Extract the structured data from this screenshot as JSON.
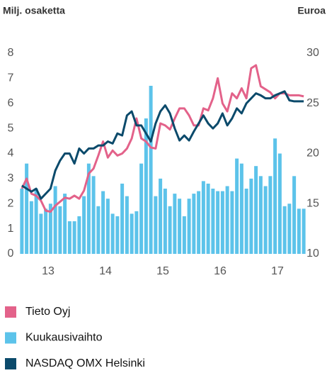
{
  "chart_data": {
    "type": "combo",
    "y_label": "Milj. osaketta",
    "y2_label": "Euroa",
    "x_groups": [
      "13",
      "14",
      "15",
      "16",
      "17"
    ],
    "categories": [
      null,
      null,
      null,
      null,
      null,
      null,
      null,
      null,
      null,
      null,
      null,
      null,
      null,
      null,
      null,
      null,
      null,
      null,
      null,
      null,
      null,
      null,
      null,
      null,
      null,
      null,
      null,
      null,
      null,
      null,
      null,
      null,
      null,
      null,
      null,
      null,
      null,
      null,
      null,
      null,
      null,
      null,
      null,
      null,
      null,
      null,
      null,
      null,
      null,
      null,
      null,
      null,
      null,
      null,
      null,
      null,
      null,
      null,
      null,
      null
    ],
    "ylim": [
      0,
      8
    ],
    "yticks": [
      0,
      1,
      2,
      3,
      4,
      5,
      6,
      7,
      8
    ],
    "y2lim": [
      10,
      30
    ],
    "y2ticks": [
      10,
      15,
      20,
      25,
      30
    ],
    "series": [
      {
        "name": "Tieto Oyj",
        "type": "line",
        "axis": "y2",
        "color": "#e3628a",
        "values": [
          16.5,
          17.5,
          16.0,
          15.8,
          15.3,
          14.3,
          14.2,
          14.8,
          15.2,
          15.6,
          15.5,
          15.8,
          15.5,
          16.3,
          18.0,
          18.5,
          19.8,
          21.2,
          19.6,
          20.3,
          19.8,
          20.0,
          20.5,
          21.5,
          23.5,
          21.5,
          21.2,
          20.6,
          20.5,
          23.0,
          22.8,
          22.4,
          23.5,
          24.5,
          24.5,
          23.8,
          22.8,
          22.8,
          24.5,
          24.3,
          25.5,
          27.5,
          25.0,
          24.2,
          26.0,
          25.5,
          26.5,
          25.5,
          28.5,
          28.8,
          26.7,
          26.4,
          26.1,
          25.5,
          26.0,
          26.0,
          25.8,
          25.8,
          25.8,
          25.7
        ]
      },
      {
        "name": "Kuukausivaihto",
        "type": "bar",
        "color": "#5cc3ea",
        "values": [
          2.6,
          3.6,
          2.1,
          2.6,
          1.6,
          1.8,
          2.0,
          2.7,
          1.9,
          2.4,
          1.3,
          1.3,
          1.5,
          2.3,
          3.6,
          3.1,
          1.9,
          2.5,
          2.2,
          1.6,
          1.5,
          2.8,
          2.3,
          1.6,
          1.7,
          3.6,
          5.4,
          6.7,
          2.3,
          3.0,
          2.6,
          1.9,
          2.4,
          2.2,
          1.5,
          2.2,
          2.4,
          2.5,
          2.9,
          2.8,
          2.6,
          2.5,
          2.5,
          2.7,
          2.5,
          3.8,
          3.6,
          2.6,
          3.0,
          3.5,
          3.1,
          2.7,
          3.1,
          4.6,
          4.0,
          1.9,
          2.0,
          3.1,
          1.8,
          1.8
        ]
      },
      {
        "name": "NASDAQ OMX Helsinki",
        "type": "line",
        "axis": "y2",
        "color": "#0b4a6b",
        "values": [
          16.8,
          16.5,
          16.2,
          16.5,
          15.5,
          16.0,
          16.5,
          18.3,
          19.3,
          20.0,
          20.0,
          19.0,
          20.5,
          20.0,
          20.5,
          20.5,
          20.8,
          20.8,
          21.2,
          21.0,
          22.0,
          21.8,
          23.8,
          24.2,
          22.8,
          22.8,
          22.0,
          21.2,
          23.0,
          24.2,
          24.8,
          24.0,
          22.5,
          21.3,
          21.8,
          21.3,
          22.2,
          23.0,
          23.8,
          23.0,
          22.5,
          23.0,
          24.0,
          22.8,
          23.5,
          24.5,
          24.0,
          25.0,
          25.5,
          26.0,
          25.8,
          25.5,
          25.5,
          25.8,
          26.0,
          26.2,
          25.3,
          25.2,
          25.2,
          25.2
        ]
      }
    ]
  }
}
